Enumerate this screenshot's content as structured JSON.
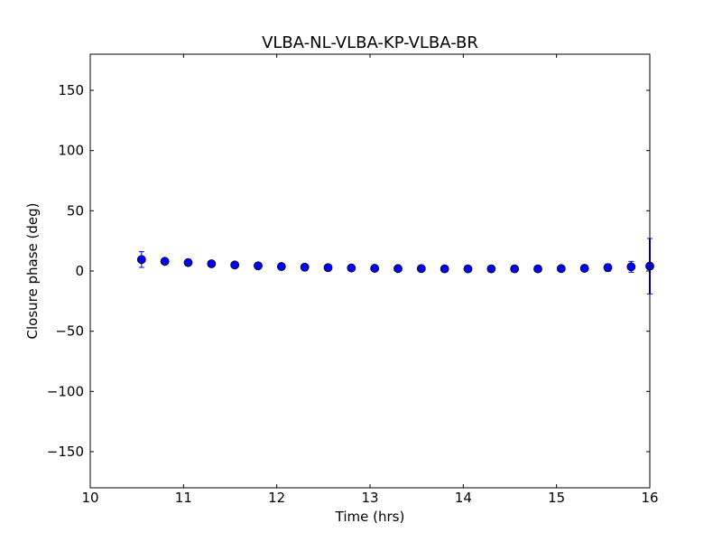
{
  "chart_data": {
    "type": "scatter",
    "title": "VLBA-NL-VLBA-KP-VLBA-BR",
    "xlabel": "Time (hrs)",
    "ylabel": "Closure phase (deg)",
    "xlim": [
      10,
      16
    ],
    "ylim": [
      -180,
      180
    ],
    "xticks": [
      10,
      11,
      12,
      13,
      14,
      15,
      16
    ],
    "yticks": [
      150,
      100,
      50,
      0,
      -50,
      -100,
      -150
    ],
    "ytick_labels": [
      "150",
      "100",
      "50",
      "0",
      "−50",
      "−100",
      "−150"
    ],
    "grid": false,
    "marker_color": "#0000ff",
    "errorbar_color": "#0000ff",
    "series": [
      {
        "x": [
          10.55,
          10.8,
          11.05,
          11.3,
          11.55,
          11.8,
          12.05,
          12.3,
          12.55,
          12.8,
          13.05,
          13.3,
          13.55,
          13.8,
          14.05,
          14.3,
          14.55,
          14.8,
          15.05,
          15.3,
          15.55,
          15.8,
          16.0
        ],
        "y": [
          9.5,
          8.0,
          7.0,
          6.0,
          5.0,
          4.3,
          3.7,
          3.2,
          2.8,
          2.5,
          2.2,
          2.0,
          2.0,
          1.8,
          1.8,
          1.8,
          1.8,
          1.8,
          2.0,
          2.2,
          2.8,
          3.5,
          4.0
        ],
        "yerr": [
          6.5,
          1.5,
          1.2,
          1.0,
          1.0,
          1.0,
          1.0,
          1.0,
          1.0,
          1.0,
          1.0,
          1.0,
          1.0,
          1.0,
          1.0,
          1.0,
          1.0,
          1.0,
          1.2,
          1.8,
          3.0,
          4.5,
          23.0
        ]
      }
    ]
  }
}
